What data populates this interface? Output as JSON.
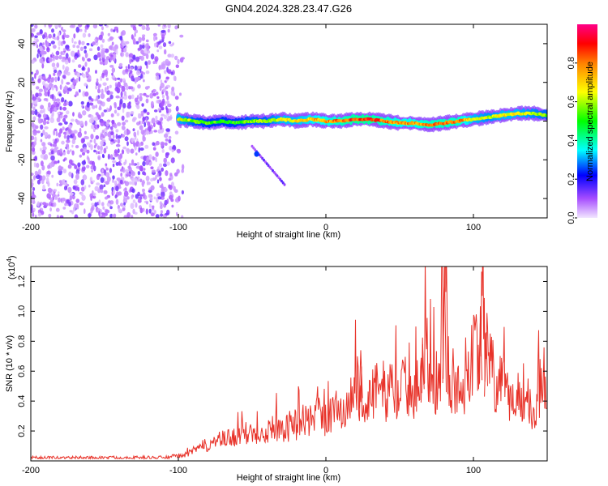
{
  "chart_data": [
    {
      "type": "heatmap",
      "title": "GN04.2024.328.23.47.G26",
      "xlabel": "Height of straight line (km)",
      "ylabel": "Frequency (Hz)",
      "xlim": [
        -200,
        150
      ],
      "ylim": [
        -50,
        50
      ],
      "x_ticks": [
        -200,
        -100,
        0,
        100
      ],
      "y_ticks": [
        -40,
        -20,
        0,
        20,
        40
      ],
      "colorbar": {
        "label": "Normalized spectral amplitude",
        "range": [
          0.0,
          1.0
        ],
        "ticks": [
          0.0,
          0.2,
          0.4,
          0.6,
          0.8
        ],
        "colors": [
          "#e8d8ff",
          "#8a2be2",
          "#0000ff",
          "#00ffff",
          "#00ff00",
          "#ffff00",
          "#ff8000",
          "#ff0000",
          "#ff00aa"
        ]
      },
      "noise_region_x": [
        -200,
        -95
      ],
      "ridge": {
        "x": [
          -100,
          -90,
          -80,
          -70,
          -60,
          -50,
          -40,
          -30,
          -20,
          -10,
          0,
          10,
          20,
          30,
          40,
          50,
          60,
          70,
          80,
          90,
          100,
          110,
          120,
          130,
          140,
          150
        ],
        "frequency": [
          1,
          0,
          -1,
          0,
          -1,
          0,
          0,
          1,
          0,
          1,
          0,
          0,
          1,
          1,
          0,
          -1,
          -1,
          -2,
          -1,
          0,
          1,
          2,
          3,
          4,
          4,
          3
        ],
        "amplitude": [
          0.7,
          0.6,
          0.55,
          0.55,
          0.55,
          0.6,
          0.6,
          0.7,
          0.7,
          0.75,
          0.8,
          0.85,
          0.9,
          0.9,
          0.85,
          0.8,
          0.8,
          0.85,
          0.85,
          0.85,
          0.7,
          0.65,
          0.7,
          0.7,
          0.65,
          0.6
        ]
      }
    },
    {
      "type": "line",
      "xlabel": "Height of straight line (km)",
      "ylabel": "SNR (10 * v/v)",
      "y_multiplier": "(x10",
      "y_multiplier_exp": "4",
      "y_multiplier_close": ")",
      "xlim": [
        -200,
        150
      ],
      "ylim": [
        0,
        13000
      ],
      "x_ticks": [
        -200,
        -100,
        0,
        100
      ],
      "y_ticks": [
        2000,
        4000,
        6000,
        8000,
        10000,
        12000
      ],
      "y_tick_labels": [
        "0.2",
        "0.4",
        "0.6",
        "0.8",
        "1.0",
        "1.2"
      ],
      "color": "#e8332a",
      "series": [
        {
          "x": [
            -200,
            -110,
            -95,
            -85,
            -75,
            -65,
            -55,
            -45,
            -35,
            -25,
            -15,
            -5,
            0,
            5,
            15,
            20,
            22,
            25,
            35,
            45,
            55,
            60,
            65,
            70,
            75,
            79,
            81,
            83,
            90,
            100,
            105,
            110,
            115,
            125,
            135,
            140,
            145,
            150
          ],
          "y": [
            200,
            220,
            400,
            900,
            1300,
            1500,
            1800,
            2000,
            2200,
            2300,
            2700,
            3000,
            2900,
            3300,
            3500,
            5600,
            4700,
            4300,
            4600,
            4800,
            4900,
            5000,
            6200,
            6800,
            5300,
            8200,
            12500,
            6000,
            4500,
            7300,
            9000,
            6800,
            5200,
            4200,
            4700,
            3200,
            5200,
            5800
          ]
        }
      ]
    }
  ]
}
